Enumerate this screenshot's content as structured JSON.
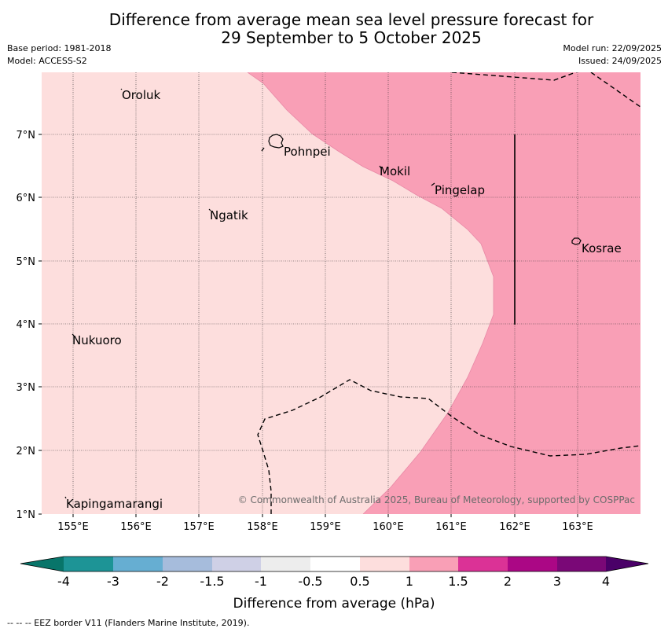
{
  "title_line1": "Difference from average mean sea level pressure forecast for",
  "title_line2": "29 September to 5 October 2025",
  "meta": {
    "base_period": "Base period: 1981-2018",
    "model": "Model: ACCESS-S2",
    "model_run": "Model run: 22/09/2025",
    "issued": "Issued: 24/09/2025"
  },
  "map": {
    "lon_labels": [
      "155°E",
      "156°E",
      "157°E",
      "158°E",
      "159°E",
      "160°E",
      "161°E",
      "162°E",
      "163°E"
    ],
    "lat_labels": [
      "7°N",
      "6°N",
      "5°N",
      "4°N",
      "3°N",
      "2°N",
      "1°N"
    ],
    "places": [
      {
        "name": "Oroluk"
      },
      {
        "name": "Pohnpei"
      },
      {
        "name": "Mokil"
      },
      {
        "name": "Pingelap"
      },
      {
        "name": "Ngatik"
      },
      {
        "name": "Kosrae"
      },
      {
        "name": "Nukuoro"
      },
      {
        "name": "Kapingamarangi"
      }
    ],
    "copyright": "© Commonwealth of Australia 2025, Bureau of Meteorology, supported by COSPPac",
    "colors": {
      "band_0_5_to_1": "#fddedd",
      "band_1_to_1_5": "#f99fb6"
    }
  },
  "legend": {
    "tick_labels": [
      "-4",
      "-3",
      "-2",
      "-1.5",
      "-1",
      "-0.5",
      "0.5",
      "1",
      "1.5",
      "2",
      "3",
      "4"
    ],
    "colors": [
      "#08756a",
      "#1d9496",
      "#66aed2",
      "#a6bcdc",
      "#cfd0e6",
      "#ededed",
      "#ffffff",
      "#fddedd",
      "#f99fb6",
      "#db3296",
      "#ab0785",
      "#7a0877",
      "#4a0068"
    ],
    "label": "Difference from average (hPa)"
  },
  "footer": "-- -- -- EEZ border V11 (Flanders Marine Institute, 2019)."
}
